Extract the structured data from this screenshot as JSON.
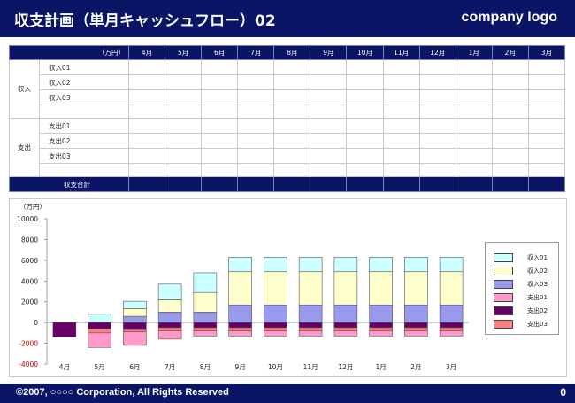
{
  "header": {
    "title": "収支計画（単月キャッシュフロー）02",
    "logo": "company logo"
  },
  "footer": {
    "copyright": "©2007, ○○○○ Corporation, All Rights Reserved",
    "page_number": "0"
  },
  "table": {
    "unit": "（万円）",
    "months": [
      "4月",
      "5月",
      "6月",
      "7月",
      "8月",
      "9月",
      "10月",
      "11月",
      "12月",
      "1月",
      "2月",
      "3月"
    ],
    "income_group": "収入",
    "income_items": [
      "収入01",
      "収入02",
      "収入03"
    ],
    "expense_group": "支出",
    "expense_items": [
      "支出01",
      "支出02",
      "支出03"
    ],
    "total_label": "収支合計"
  },
  "chart_data": {
    "type": "bar",
    "stacked": true,
    "unit_label": "（万円）",
    "categories": [
      "4月",
      "5月",
      "6月",
      "7月",
      "8月",
      "9月",
      "10月",
      "11月",
      "12月",
      "1月",
      "2月",
      "3月"
    ],
    "ylim": [
      -4000,
      10000
    ],
    "yticks": [
      -4000,
      -2000,
      0,
      2000,
      4000,
      6000,
      8000,
      10000
    ],
    "series": [
      {
        "name": "収入03",
        "color": "#9999ee",
        "values": [
          0,
          0,
          600,
          1000,
          1000,
          1700,
          1700,
          1700,
          1700,
          1700,
          1700,
          1700
        ]
      },
      {
        "name": "収入02",
        "color": "#ffffcc",
        "values": [
          0,
          0,
          750,
          1200,
          1900,
          3200,
          3200,
          3200,
          3200,
          3200,
          3200,
          3200
        ]
      },
      {
        "name": "収入01",
        "color": "#ccffff",
        "values": [
          0,
          800,
          700,
          1500,
          1900,
          1400,
          1400,
          1400,
          1400,
          1400,
          1400,
          1400
        ]
      },
      {
        "name": "支出02",
        "color": "#660066",
        "values": [
          -1400,
          -600,
          -700,
          -500,
          -500,
          -500,
          -500,
          -500,
          -500,
          -500,
          -500,
          -500
        ]
      },
      {
        "name": "支出03",
        "color": "#ff8080",
        "values": [
          0,
          -400,
          -200,
          -300,
          -300,
          -300,
          -300,
          -300,
          -300,
          -300,
          -300,
          -300
        ]
      },
      {
        "name": "支出01",
        "color": "#ff99cc",
        "values": [
          0,
          -1400,
          -1300,
          -800,
          -500,
          -500,
          -500,
          -500,
          -500,
          -500,
          -500,
          -500
        ]
      }
    ],
    "legend": [
      {
        "name": "収入01",
        "color": "#ccffff"
      },
      {
        "name": "収入02",
        "color": "#ffffcc"
      },
      {
        "name": "収入03",
        "color": "#9999ee"
      },
      {
        "name": "支出01",
        "color": "#ff99cc"
      },
      {
        "name": "支出02",
        "color": "#660066"
      },
      {
        "name": "支出03",
        "color": "#ff8080"
      }
    ],
    "legend_position": "right"
  }
}
